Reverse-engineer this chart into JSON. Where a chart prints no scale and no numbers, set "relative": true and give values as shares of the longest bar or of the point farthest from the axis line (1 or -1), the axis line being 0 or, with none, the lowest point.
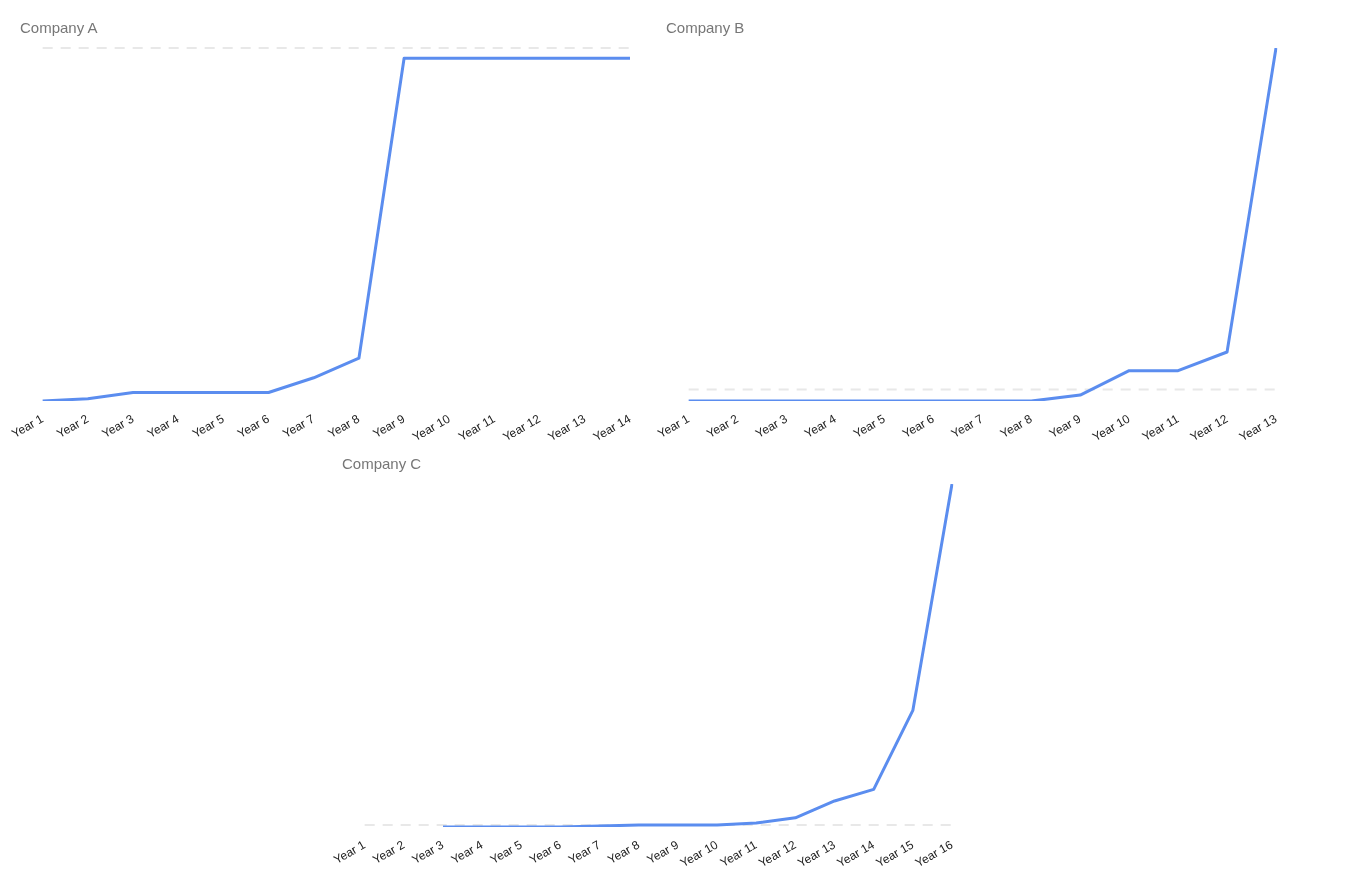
{
  "chart_data": [
    {
      "type": "line",
      "title": "Company A",
      "relative": true,
      "color": "#5b8def",
      "categories": [
        "Year 1",
        "Year 2",
        "Year 3",
        "Year 4",
        "Year 5",
        "Year 6",
        "Year 7",
        "Year 8",
        "Year 9",
        "Year 10",
        "Year 11",
        "Year 12",
        "Year 13",
        "Year 14"
      ],
      "values": [
        0,
        0.007,
        0.025,
        0.025,
        0.025,
        0.025,
        0.068,
        0.125,
        1,
        1,
        1,
        1,
        1,
        1
      ],
      "ref_lines": [
        {
          "axis": "y",
          "value": 1.03,
          "color": "#e8e8e8",
          "line_style": "dashed"
        }
      ]
    },
    {
      "type": "line",
      "title": "Company B",
      "relative": true,
      "color": "#5b8def",
      "categories": [
        "Year 1",
        "Year 2",
        "Year 3",
        "Year 4",
        "Year 5",
        "Year 6",
        "Year 7",
        "Year 8",
        "Year 9",
        "Year 10",
        "Year 11",
        "Year 12",
        "Year 13"
      ],
      "values": [
        0,
        0,
        0,
        0,
        0,
        0,
        0,
        0,
        0.017,
        0.086,
        0.086,
        0.139,
        1
      ],
      "ref_lines": [
        {
          "axis": "y",
          "value": 0.033,
          "color": "#e8e8e8",
          "line_style": "dashed"
        }
      ]
    },
    {
      "type": "line",
      "title": "Company C",
      "relative": true,
      "color": "#5b8def",
      "categories": [
        "Year 1",
        "Year 2",
        "Year 3",
        "Year 4",
        "Year 5",
        "Year 6",
        "Year 7",
        "Year 8",
        "Year 9",
        "Year 10",
        "Year 11",
        "Year 12",
        "Year 13",
        "Year 14",
        "Year 15",
        "Year 16"
      ],
      "values": [
        null,
        null,
        0,
        0,
        0,
        0,
        0.003,
        0.006,
        0.006,
        0.006,
        0.012,
        0.027,
        0.076,
        0.11,
        0.34,
        1
      ],
      "ref_lines": [
        {
          "axis": "y",
          "value": 0.006,
          "color": "#e8e8e8",
          "line_style": "dashed"
        }
      ]
    }
  ]
}
